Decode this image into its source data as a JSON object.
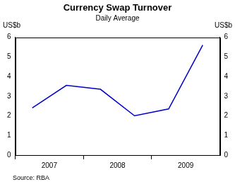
{
  "chart_data": {
    "type": "line",
    "title": "Currency Swap Turnover",
    "subtitle": "Daily Average",
    "y_label": "US$b",
    "y2_label": "US$b",
    "categories": [
      "2007",
      null,
      "2008",
      null,
      "2009",
      null
    ],
    "values": [
      2.4,
      3.55,
      3.35,
      2.0,
      2.35,
      5.6
    ],
    "color": "#0000cc",
    "ylim": [
      0,
      6
    ],
    "yticks": [
      0,
      1,
      2,
      3,
      4,
      5,
      6
    ],
    "y2lim": [
      0,
      6
    ],
    "y2ticks": [
      0,
      1,
      2,
      3,
      4,
      5,
      6
    ],
    "grid": false,
    "annotations": [
      "Source: RBA"
    ]
  }
}
